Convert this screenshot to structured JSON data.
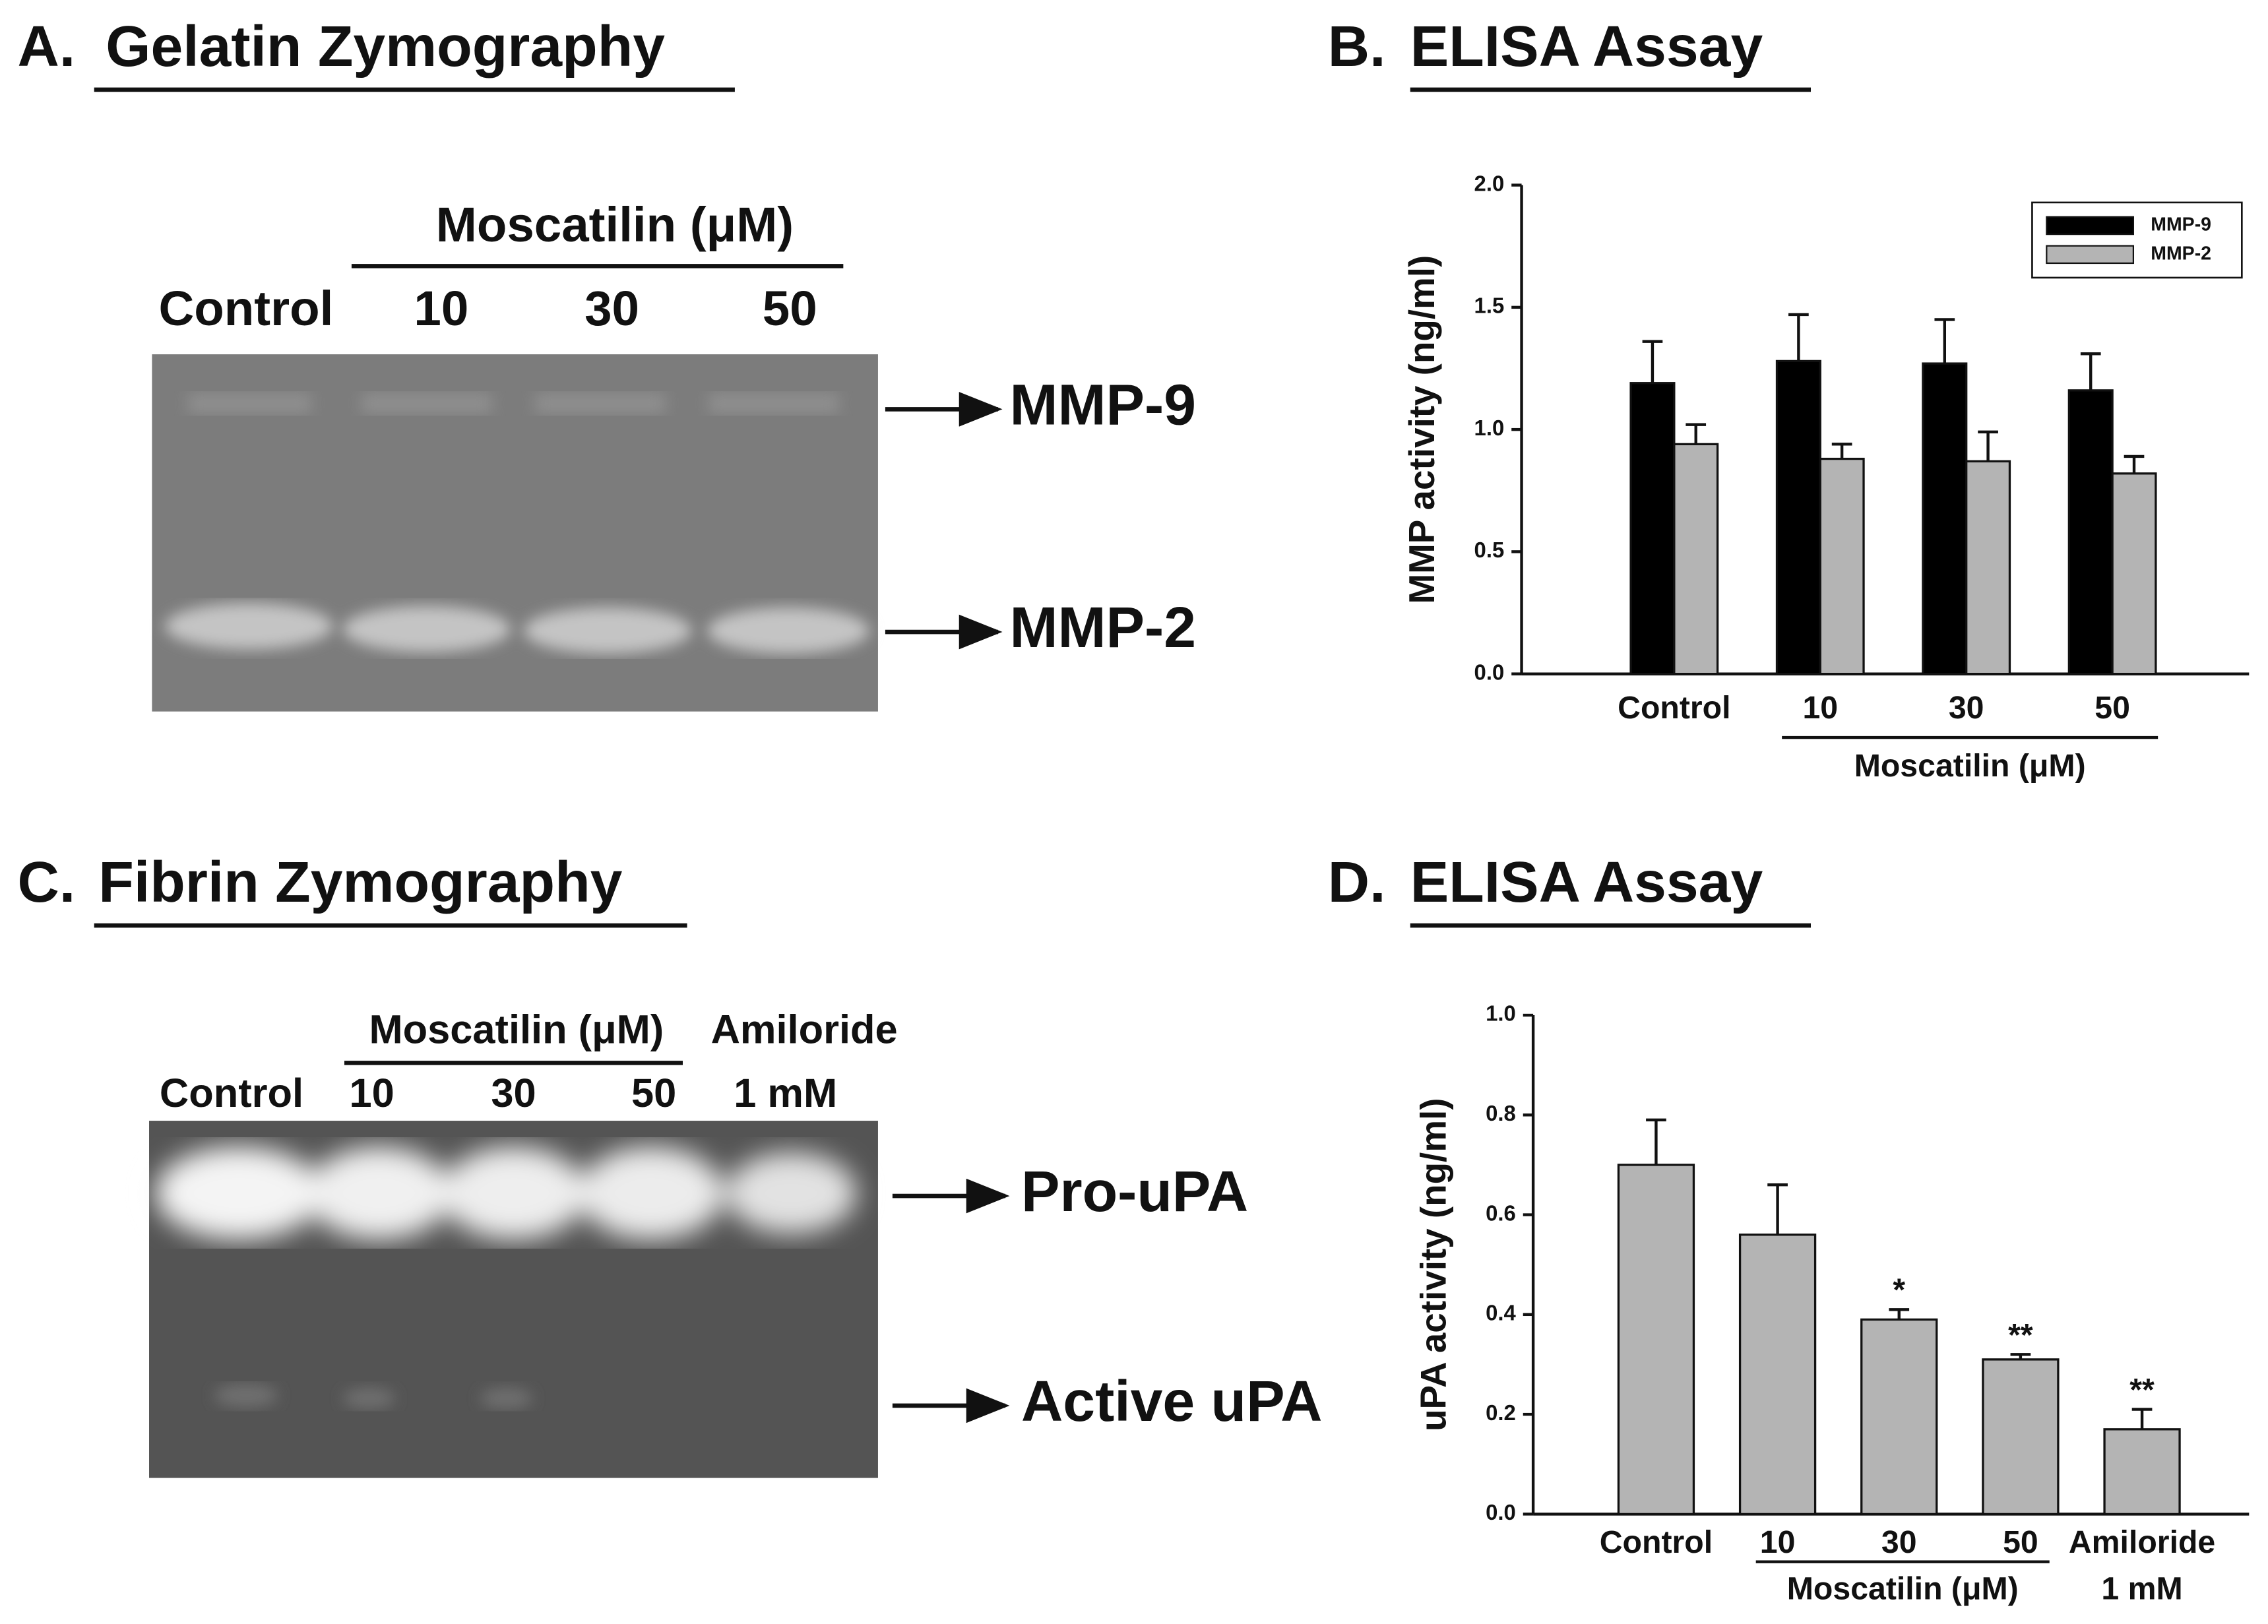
{
  "panels": {
    "a": {
      "letter": "A.",
      "title": "Gelatin Zymography",
      "group_label": "Moscatilin (μM)",
      "lanes": [
        "Control",
        "10",
        "30",
        "50"
      ],
      "bands": [
        "MMP-9",
        "MMP-2"
      ]
    },
    "c": {
      "letter": "C.",
      "title": "Fibrin Zymography",
      "group_label": "Moscatilin (μM)",
      "extra_label": "Amiloride",
      "lanes": [
        "Control",
        "10",
        "30",
        "50",
        "1 mM"
      ],
      "bands": [
        "Pro-uPA",
        "Active uPA"
      ]
    }
  },
  "chart_data": [
    {
      "type": "bar",
      "letter": "B.",
      "title": "ELISA Assay",
      "y_label": "MMP activity (ng/ml)",
      "categories": [
        "Control",
        "10",
        "30",
        "50"
      ],
      "group_label": "Moscatilin (μM)",
      "ylim": [
        0,
        2
      ],
      "yticks": [
        {
          "value": 0,
          "label": "0.0"
        },
        {
          "value": 0.5,
          "label": "0.5"
        },
        {
          "value": 1,
          "label": "1.0"
        },
        {
          "value": 1.5,
          "label": "1.5"
        },
        {
          "value": 2,
          "label": "2.0"
        }
      ],
      "legend": "upper right",
      "series": [
        {
          "name": "MMP-9",
          "color": "#000000",
          "values": [
            1.19,
            1.28,
            1.27,
            1.16
          ],
          "errors": [
            0.17,
            0.19,
            0.18,
            0.15
          ]
        },
        {
          "name": "MMP-2",
          "color": "#b4b4b4",
          "values": [
            0.94,
            0.88,
            0.87,
            0.82
          ],
          "errors": [
            0.08,
            0.06,
            0.12,
            0.07
          ]
        }
      ]
    },
    {
      "type": "bar",
      "letter": "D.",
      "title": "ELISA Assay",
      "y_label": "uPA activity (ng/ml)",
      "categories": [
        "Control",
        "10",
        "30",
        "50",
        "Amiloride"
      ],
      "group_label": "Moscatilin (μM)",
      "dose_label": "1 mM",
      "ylim": [
        0,
        1
      ],
      "yticks": [
        {
          "value": 0,
          "label": "0.0"
        },
        {
          "value": 0.2,
          "label": "0.2"
        },
        {
          "value": 0.4,
          "label": "0.4"
        },
        {
          "value": 0.6,
          "label": "0.6"
        },
        {
          "value": 0.8,
          "label": "0.8"
        },
        {
          "value": 1,
          "label": "1.0"
        }
      ],
      "series": [
        {
          "name": null,
          "color": "#b4b4b4",
          "values": [
            0.7,
            0.56,
            0.39,
            0.31,
            0.17
          ],
          "errors": [
            0.09,
            0.1,
            0.02,
            0.01,
            0.04
          ],
          "significance": [
            null,
            null,
            "*",
            "**",
            "**"
          ]
        }
      ]
    }
  ]
}
